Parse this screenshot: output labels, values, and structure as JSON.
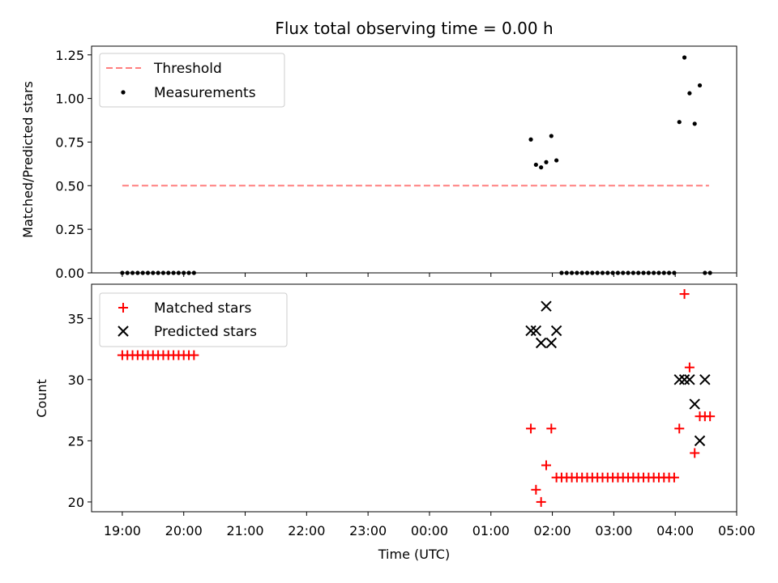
{
  "figure": {
    "title": "Flux total observing time = 0.00 h",
    "xlabel": "Time (UTC)"
  },
  "chart_data": [
    {
      "type": "scatter",
      "panel": "top",
      "ylabel": "Matched/Predicted stars",
      "xlim": [
        "18:30",
        "05:00"
      ],
      "ylim": [
        0,
        1.3
      ],
      "yticks": [
        "0.00",
        "0.25",
        "0.50",
        "0.75",
        "1.00",
        "1.25"
      ],
      "xticks": [
        "19:00",
        "20:00",
        "21:00",
        "22:00",
        "23:00",
        "00:00",
        "01:00",
        "02:00",
        "03:00",
        "04:00",
        "05:00"
      ],
      "legend_position": "upper-left",
      "threshold": {
        "name": "Threshold",
        "value": 0.5,
        "x_start": "19:00",
        "x_end": "04:33",
        "color": "#ff7f7f",
        "style": "dashed"
      },
      "series": [
        {
          "name": "Measurements",
          "color": "#000000",
          "marker": "dot",
          "x": [
            "19:00",
            "19:05",
            "19:10",
            "19:15",
            "19:20",
            "19:25",
            "19:30",
            "19:35",
            "19:40",
            "19:45",
            "19:50",
            "19:55",
            "20:00",
            "20:05",
            "20:10",
            "01:39",
            "01:44",
            "01:49",
            "01:54",
            "01:59",
            "02:04",
            "02:09",
            "02:14",
            "02:19",
            "02:24",
            "02:29",
            "02:34",
            "02:39",
            "02:44",
            "02:49",
            "02:54",
            "02:59",
            "03:04",
            "03:09",
            "03:14",
            "03:19",
            "03:24",
            "03:29",
            "03:34",
            "03:39",
            "03:44",
            "03:49",
            "03:54",
            "03:59",
            "04:04",
            "04:09",
            "04:14",
            "04:19",
            "04:24",
            "04:29",
            "04:34"
          ],
          "y": [
            0,
            0,
            0,
            0,
            0,
            0,
            0,
            0,
            0,
            0,
            0,
            0,
            0,
            0,
            0,
            0.765,
            0.62,
            0.605,
            0.635,
            0.785,
            0.645,
            0,
            0,
            0,
            0,
            0,
            0,
            0,
            0,
            0,
            0,
            0,
            0,
            0,
            0,
            0,
            0,
            0,
            0,
            0,
            0,
            0,
            0,
            0,
            0.865,
            1.235,
            1.03,
            0.855,
            1.075,
            0,
            0
          ]
        }
      ]
    },
    {
      "type": "scatter",
      "panel": "bottom",
      "ylabel": "Count",
      "xlabel": "Time (UTC)",
      "xlim": [
        "18:30",
        "05:00"
      ],
      "ylim": [
        19.2,
        37.8
      ],
      "yticks": [
        "20",
        "25",
        "30",
        "35"
      ],
      "xticks": [
        "19:00",
        "20:00",
        "21:00",
        "22:00",
        "23:00",
        "00:00",
        "01:00",
        "02:00",
        "03:00",
        "04:00",
        "05:00"
      ],
      "legend_position": "upper-left",
      "series": [
        {
          "name": "Matched stars",
          "color": "#ff0000",
          "marker": "plus",
          "x": [
            "19:00",
            "19:05",
            "19:10",
            "19:15",
            "19:20",
            "19:25",
            "19:30",
            "19:35",
            "19:40",
            "19:45",
            "19:50",
            "19:55",
            "20:00",
            "20:05",
            "20:10",
            "01:39",
            "01:44",
            "01:49",
            "01:54",
            "01:59",
            "02:04",
            "02:09",
            "02:14",
            "02:19",
            "02:24",
            "02:29",
            "02:34",
            "02:39",
            "02:44",
            "02:49",
            "02:54",
            "02:59",
            "03:04",
            "03:09",
            "03:14",
            "03:19",
            "03:24",
            "03:29",
            "03:34",
            "03:39",
            "03:44",
            "03:49",
            "03:54",
            "03:59",
            "04:04",
            "04:09",
            "04:14",
            "04:19",
            "04:24",
            "04:29",
            "04:34"
          ],
          "y": [
            32,
            32,
            32,
            32,
            32,
            32,
            32,
            32,
            32,
            32,
            32,
            32,
            32,
            32,
            32,
            26,
            21,
            20,
            23,
            26,
            22,
            22,
            22,
            22,
            22,
            22,
            22,
            22,
            22,
            22,
            22,
            22,
            22,
            22,
            22,
            22,
            22,
            22,
            22,
            22,
            22,
            22,
            22,
            22,
            26,
            37,
            31,
            24,
            27,
            27,
            27
          ]
        },
        {
          "name": "Predicted stars",
          "color": "#000000",
          "marker": "x",
          "x": [
            "01:39",
            "01:44",
            "01:49",
            "01:54",
            "01:59",
            "02:04",
            "04:04",
            "04:09",
            "04:14",
            "04:19",
            "04:24",
            "04:29"
          ],
          "y": [
            34,
            34,
            33,
            36,
            33,
            34,
            30,
            30,
            30,
            28,
            25,
            30
          ]
        }
      ]
    }
  ]
}
